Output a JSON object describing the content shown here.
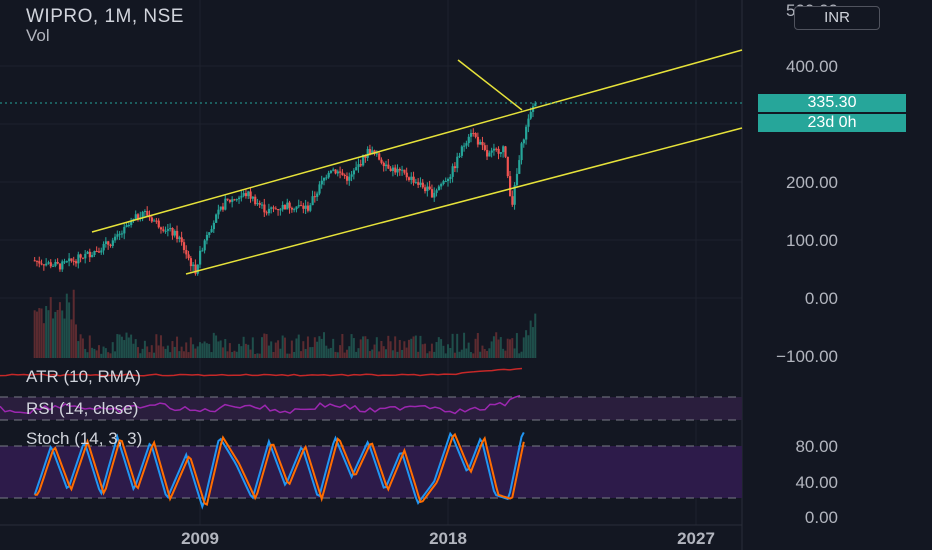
{
  "header": {
    "symbol_line": "WIPRO, 1M, NSE",
    "volume_label": "Vol"
  },
  "currency_button": "INR",
  "last_price": "335.30",
  "countdown": "23d 0h",
  "panels": {
    "atr_label": "ATR (10, RMA)",
    "rsi_label": "RSI (14, close)",
    "stoch_label": "Stoch (14, 3, 3)"
  },
  "colors": {
    "background": "#131722",
    "up_candle": "#26a69a",
    "down_candle": "#ef5350",
    "channel": "#e6e23a",
    "atr_line": "#c62828",
    "rsi_line": "#9c27b0",
    "stoch_k": "#2196f3",
    "stoch_d": "#ff6d00"
  },
  "chart_data": [
    {
      "type": "candlestick",
      "title": "WIPRO, 1M, NSE",
      "y_tick_labels": [
        "500.00",
        "400.00",
        "200.00",
        "100.00",
        "0.00",
        "−100.00"
      ],
      "x_tick_labels": [
        "2009",
        "2018",
        "2027"
      ],
      "ylim": [
        -100,
        500
      ],
      "last_value": 335.3,
      "price_path": [
        [
          2003.0,
          65
        ],
        [
          2004.0,
          55
        ],
        [
          2005.0,
          75
        ],
        [
          2006.0,
          100
        ],
        [
          2007.0,
          150
        ],
        [
          2007.5,
          130
        ],
        [
          2008.3,
          105
        ],
        [
          2008.9,
          45
        ],
        [
          2009.3,
          110
        ],
        [
          2010.0,
          165
        ],
        [
          2010.8,
          180
        ],
        [
          2011.5,
          150
        ],
        [
          2012.3,
          160
        ],
        [
          2013.0,
          155
        ],
        [
          2013.8,
          225
        ],
        [
          2014.5,
          205
        ],
        [
          2015.2,
          255
        ],
        [
          2016.0,
          225
        ],
        [
          2016.8,
          205
        ],
        [
          2017.5,
          180
        ],
        [
          2018.2,
          215
        ],
        [
          2018.9,
          290
        ],
        [
          2019.5,
          245
        ],
        [
          2020.1,
          260
        ],
        [
          2020.4,
          160
        ],
        [
          2020.8,
          275
        ],
        [
          2021.2,
          335
        ]
      ]
    },
    {
      "type": "line",
      "title": "Stoch (14, 3, 3)",
      "y_tick_labels": [
        "80.00",
        "40.00",
        "0.00"
      ],
      "ylim": [
        0,
        100
      ],
      "k_path": [
        [
          2003.0,
          25
        ],
        [
          2003.6,
          80
        ],
        [
          2004.2,
          30
        ],
        [
          2004.8,
          85
        ],
        [
          2005.4,
          25
        ],
        [
          2006.0,
          90
        ],
        [
          2006.6,
          30
        ],
        [
          2007.2,
          85
        ],
        [
          2007.8,
          20
        ],
        [
          2008.5,
          70
        ],
        [
          2009.1,
          10
        ],
        [
          2009.7,
          90
        ],
        [
          2010.3,
          60
        ],
        [
          2010.9,
          20
        ],
        [
          2011.5,
          85
        ],
        [
          2012.1,
          35
        ],
        [
          2012.7,
          80
        ],
        [
          2013.3,
          20
        ],
        [
          2013.9,
          90
        ],
        [
          2014.5,
          45
        ],
        [
          2015.1,
          85
        ],
        [
          2015.7,
          30
        ],
        [
          2016.3,
          75
        ],
        [
          2016.9,
          15
        ],
        [
          2017.5,
          40
        ],
        [
          2018.1,
          95
        ],
        [
          2018.7,
          50
        ],
        [
          2019.2,
          90
        ],
        [
          2019.7,
          25
        ],
        [
          2020.2,
          20
        ],
        [
          2020.7,
          95
        ]
      ]
    }
  ]
}
